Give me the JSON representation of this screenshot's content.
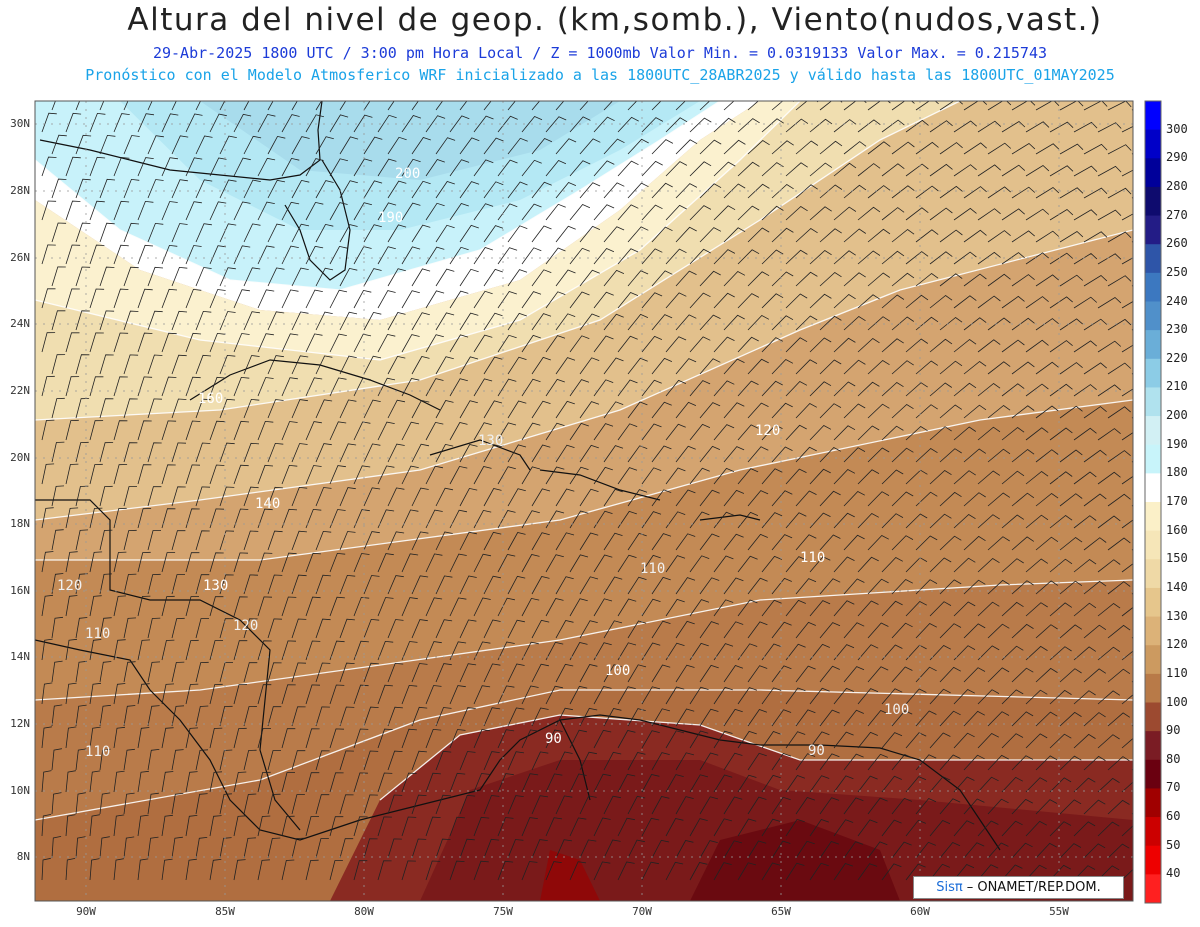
{
  "header": {
    "title": "Altura del nivel de geop. (km,somb.), Viento(nudos,vast.)",
    "line1": "29-Abr-2025  1800 UTC / 3:00 pm Hora Local / Z = 1000mb  Valor Min. = 0.0319133  Valor Max. = 0.215743",
    "line2": "Pronóstico con el Modelo Atmosferico WRF inicializado a las 1800UTC_28ABR2025 y válido hasta las  1800UTC_01MAY2025"
  },
  "axes": {
    "lat_labels": [
      "30N",
      "28N",
      "26N",
      "24N",
      "22N",
      "20N",
      "18N",
      "16N",
      "14N",
      "12N",
      "10N",
      "8N"
    ],
    "lon_labels": [
      "90W",
      "85W",
      "80W",
      "75W",
      "70W",
      "65W",
      "60W",
      "55W"
    ]
  },
  "colorbar": {
    "labels": [
      "300",
      "290",
      "280",
      "270",
      "260",
      "250",
      "240",
      "230",
      "220",
      "210",
      "200",
      "190",
      "180",
      "170",
      "160",
      "150",
      "140",
      "130",
      "120",
      "110",
      "100",
      "90",
      "80",
      "70",
      "60",
      "50",
      "40"
    ],
    "colors": [
      "#0000ff",
      "#0000c8",
      "#00009a",
      "#0e0b6e",
      "#231c86",
      "#2e55a8",
      "#3c78c0",
      "#5090ca",
      "#6aaed8",
      "#8ccce6",
      "#b0e2ee",
      "#d2f0f4",
      "#c8f4fa",
      "#ffffff",
      "#fbf0c8",
      "#f6e6b8",
      "#efd9a6",
      "#e6c68c",
      "#dcb278",
      "#cc9a60",
      "#b87a48",
      "#9c4a30",
      "#7a1c24",
      "#6a0010",
      "#a00000",
      "#cc0000",
      "#ee0000",
      "#ff2020"
    ]
  },
  "contour_labels": [
    "200",
    "190",
    "160",
    "140",
    "130",
    "120",
    "110",
    "100",
    "90"
  ],
  "credit": {
    "brand": "Sisπ",
    "text": "– ONAMET/REP.DOM."
  }
}
